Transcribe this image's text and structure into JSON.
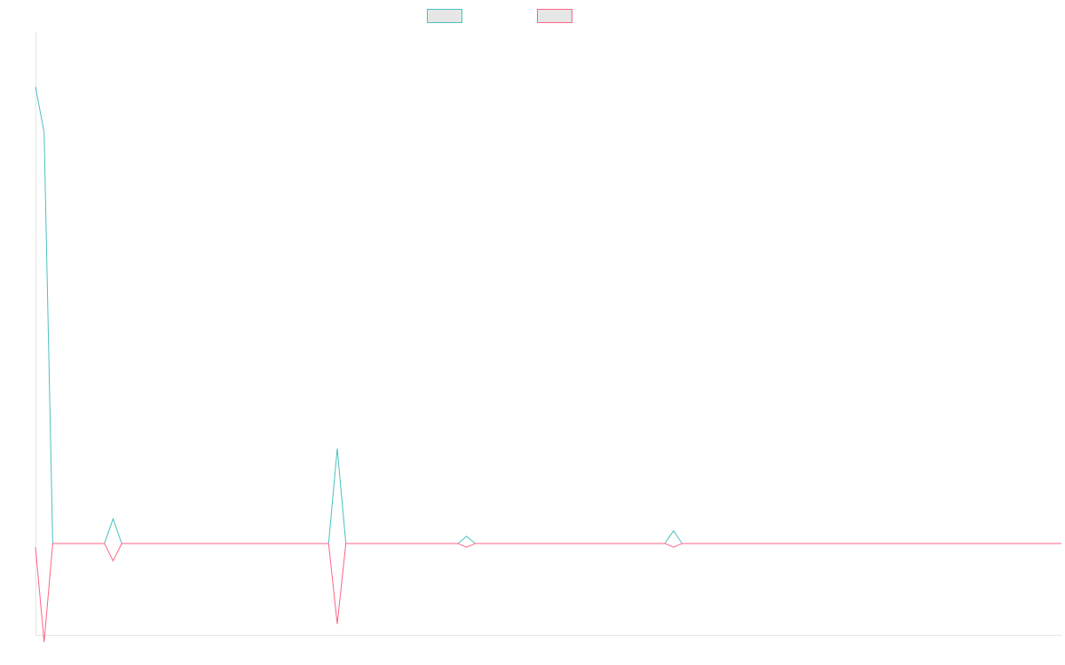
{
  "chart_data": {
    "type": "line",
    "title": "",
    "xlabel": "",
    "ylabel": "",
    "x": [
      0,
      1,
      2,
      3,
      4,
      5,
      6,
      7,
      8,
      9,
      10,
      11,
      12,
      13,
      14,
      15,
      16,
      17,
      18,
      19,
      20,
      21,
      22,
      23,
      24,
      25,
      26,
      27,
      28,
      29,
      30,
      31,
      32,
      33,
      34,
      35,
      36,
      37,
      38,
      39,
      40,
      41,
      42,
      43,
      44,
      45,
      46,
      47,
      48,
      49,
      50,
      51,
      52,
      53,
      54,
      55,
      56,
      57,
      58,
      59,
      60,
      61,
      62,
      63,
      64,
      65,
      66,
      67,
      68,
      69,
      70,
      71,
      72,
      73,
      74,
      75,
      76,
      77,
      78,
      79,
      80,
      81,
      82,
      83,
      84,
      85,
      86,
      87,
      88,
      89,
      90,
      91,
      92,
      93,
      94,
      95,
      96,
      97,
      98,
      99,
      100,
      101,
      102,
      103,
      104,
      105,
      106,
      107,
      108,
      109,
      110,
      111,
      112,
      113,
      114,
      115,
      116,
      117,
      118,
      119
    ],
    "ylim": [
      -5,
      28
    ],
    "legend": {
      "placement": "top-center"
    },
    "grid": false,
    "series": [
      {
        "values": [
          25,
          22.5,
          0,
          0,
          0,
          0,
          0,
          0,
          0,
          1.35,
          0,
          0,
          0,
          0,
          0,
          0,
          0,
          0,
          0,
          0,
          0,
          0,
          0,
          0,
          0,
          0,
          0,
          0,
          0,
          0,
          0,
          0,
          0,
          0,
          0,
          5.2,
          0,
          0,
          0,
          0,
          0,
          0,
          0,
          0,
          0,
          0,
          0,
          0,
          0,
          0,
          0.4,
          0,
          0,
          0,
          0,
          0,
          0,
          0,
          0,
          0,
          0,
          0,
          0,
          0,
          0,
          0,
          0,
          0,
          0,
          0,
          0,
          0,
          0,
          0,
          0.7,
          0,
          0,
          0,
          0,
          0,
          0,
          0,
          0,
          0,
          0,
          0,
          0,
          0,
          0,
          0,
          0,
          0,
          0,
          0,
          0,
          0,
          0,
          0,
          0,
          0,
          0,
          0,
          0,
          0,
          0,
          0,
          0,
          0,
          0,
          0,
          0,
          0,
          0,
          0,
          0,
          0,
          0,
          0,
          0,
          0
        ],
        "color": "#4bc0c0",
        "fill": "#e6e6e6"
      },
      {
        "values": [
          -0.2,
          -5.4,
          0,
          0,
          0,
          0,
          0,
          0,
          0,
          -0.95,
          0,
          0,
          0,
          0,
          0,
          0,
          0,
          0,
          0,
          0,
          0,
          0,
          0,
          0,
          0,
          0,
          0,
          0,
          0,
          0,
          0,
          0,
          0,
          0,
          0,
          -4.4,
          0,
          0,
          0,
          0,
          0,
          0,
          0,
          0,
          0,
          0,
          0,
          0,
          0,
          0,
          -0.2,
          0,
          0,
          0,
          0,
          0,
          0,
          0,
          0,
          0,
          0,
          0,
          0,
          0,
          0,
          0,
          0,
          0,
          0,
          0,
          0,
          0,
          0,
          0,
          -0.2,
          0,
          0,
          0,
          0,
          0,
          0,
          0,
          0,
          0,
          0,
          0,
          0,
          0,
          0,
          0,
          0,
          0,
          0,
          0,
          0,
          0,
          0,
          0,
          0,
          0,
          0,
          0,
          0,
          0,
          0,
          0,
          0,
          0,
          0,
          0,
          0,
          0,
          0,
          0,
          0,
          0,
          0,
          0,
          0,
          0
        ],
        "color": "#ff6384",
        "fill": "#e6e6e6"
      }
    ]
  }
}
